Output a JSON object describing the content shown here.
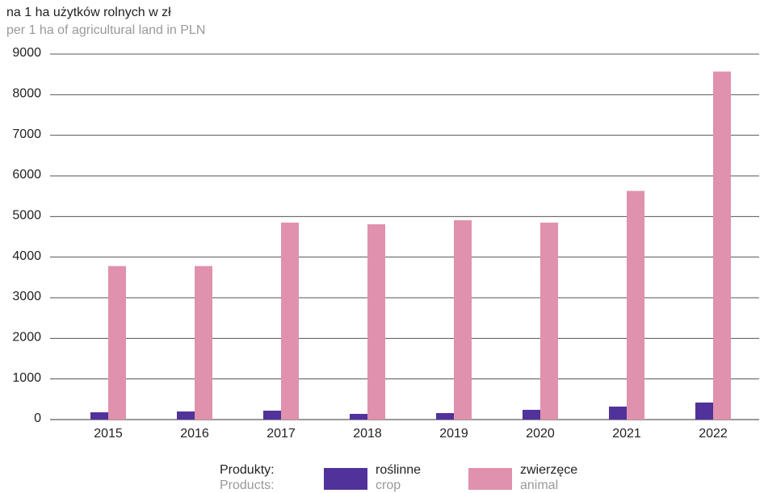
{
  "chart_data": {
    "type": "bar",
    "title": "na 1 ha użytków rolnych w zł",
    "subtitle": "per 1 ha of agricultural land in PLN",
    "categories": [
      "2015",
      "2016",
      "2017",
      "2018",
      "2019",
      "2020",
      "2021",
      "2022"
    ],
    "series": [
      {
        "name": "roślinne",
        "name_en": "crop",
        "color": "#51319a",
        "values": [
          180,
          200,
          220,
          140,
          160,
          240,
          320,
          420
        ]
      },
      {
        "name": "zwierzęce",
        "name_en": "animal",
        "color": "#e091ad",
        "values": [
          3780,
          3780,
          4850,
          4810,
          4910,
          4850,
          5630,
          8570
        ]
      }
    ],
    "legend_title": "Produkty:",
    "legend_title_en": "Products:",
    "ylim": [
      0,
      9000
    ],
    "yticks": [
      0,
      1000,
      2000,
      3000,
      4000,
      5000,
      6000,
      7000,
      8000,
      9000
    ],
    "grid": true
  }
}
